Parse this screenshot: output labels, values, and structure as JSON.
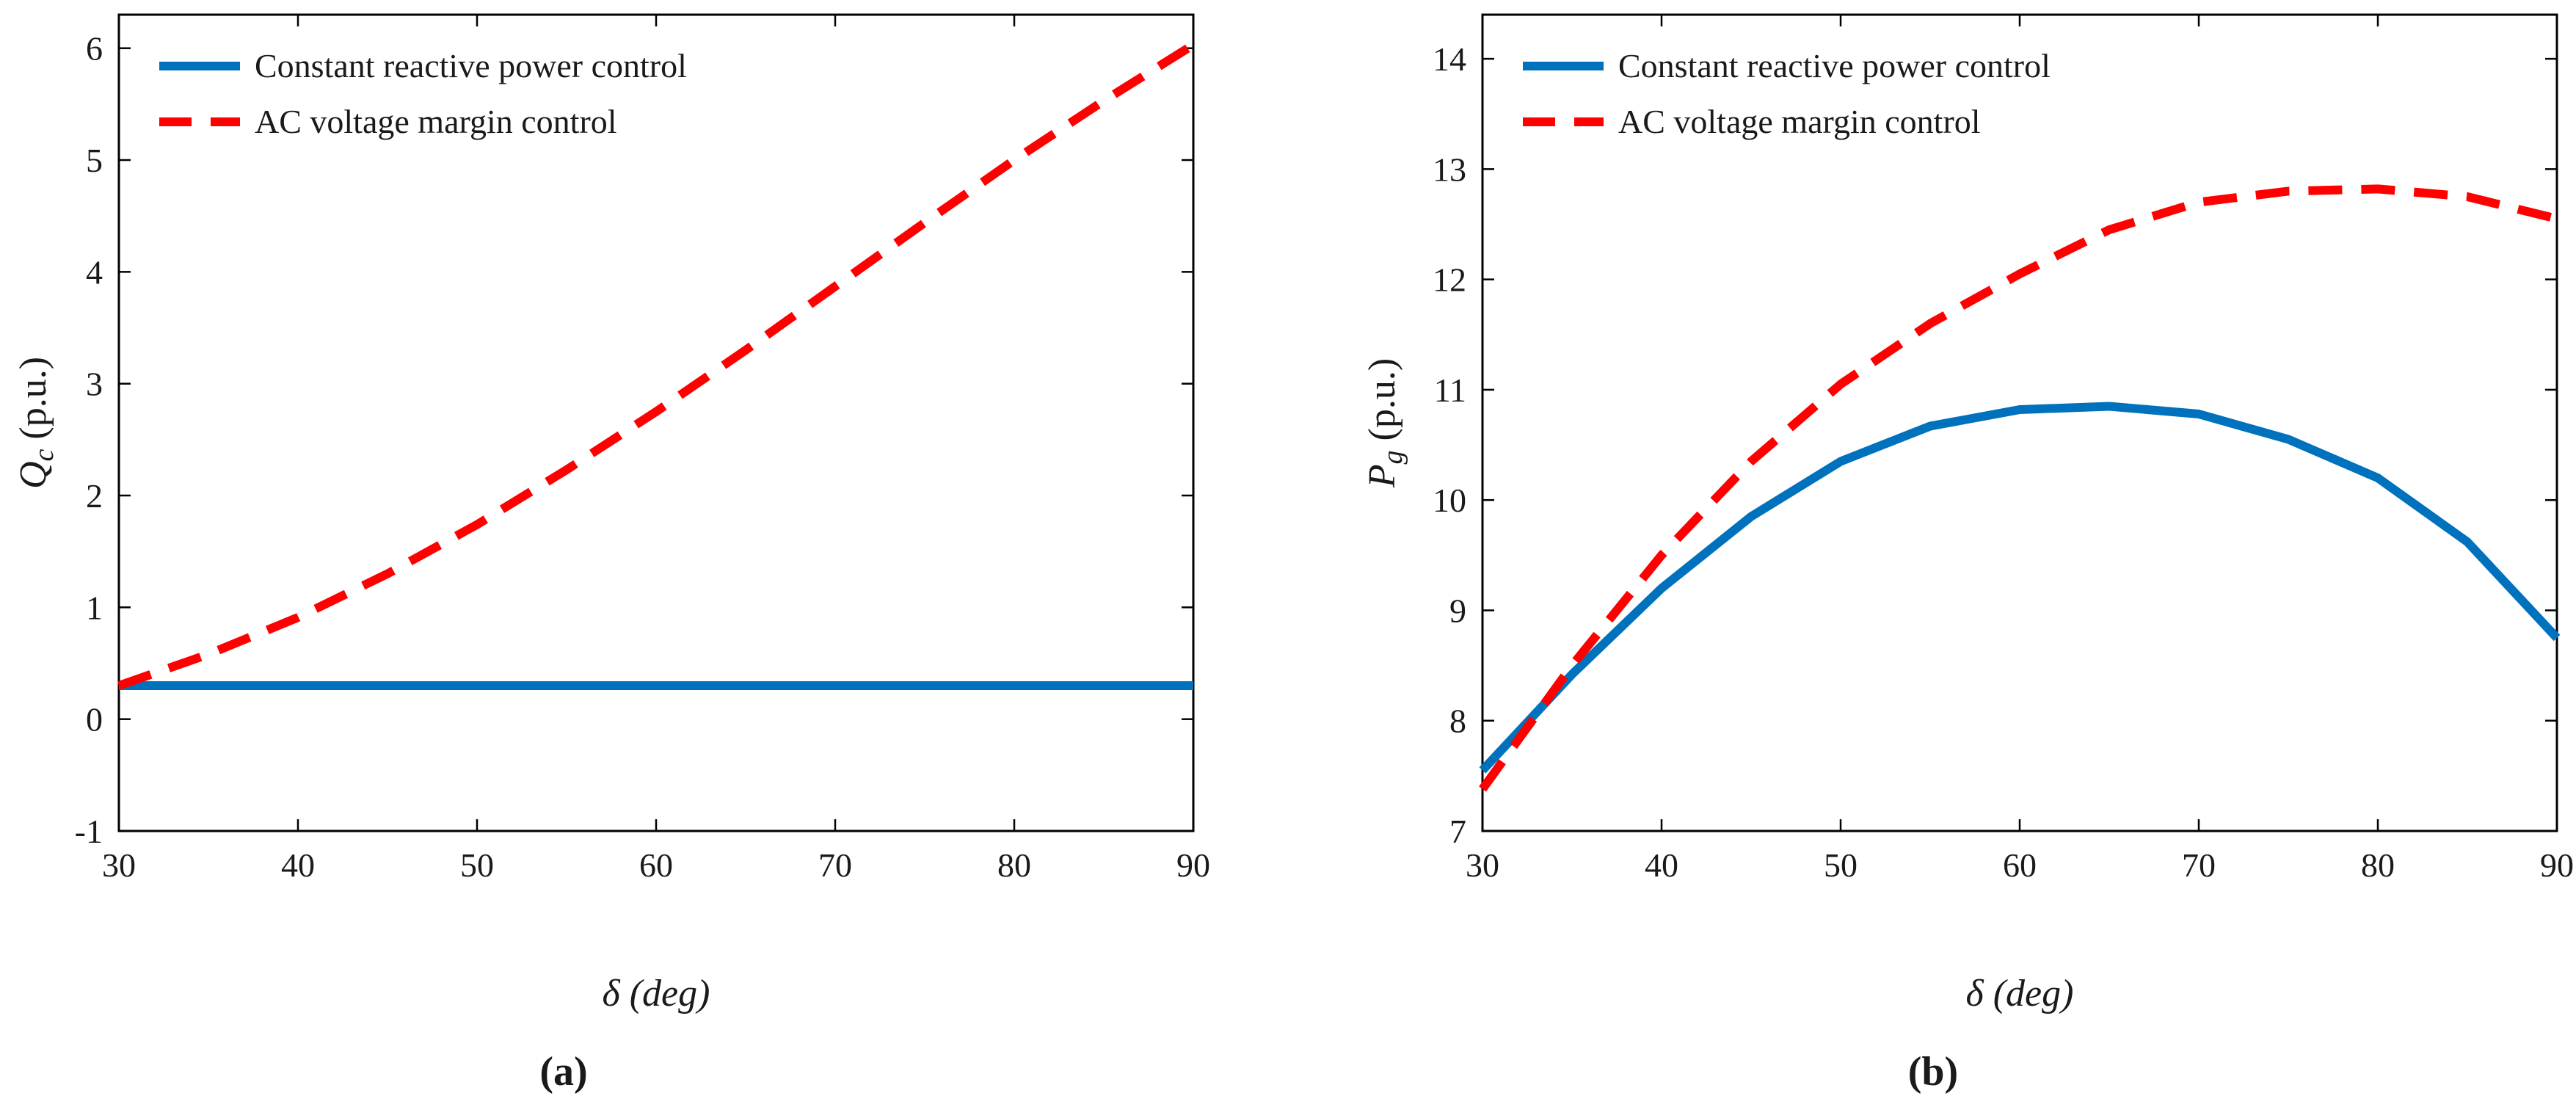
{
  "figure": {
    "panels": [
      "(a)",
      "(b)"
    ]
  },
  "chart_data": [
    {
      "type": "line",
      "panel": "(a)",
      "title": "",
      "xlabel": "δ (deg)",
      "ylabel_main": "Q",
      "ylabel_sub": "c",
      "ylabel_unit": " (p.u.)",
      "xlim": [
        30,
        90
      ],
      "ylim": [
        -1,
        6.3
      ],
      "xticks": [
        30,
        40,
        50,
        60,
        70,
        80,
        90
      ],
      "yticks": [
        -1,
        0,
        1,
        2,
        3,
        4,
        5,
        6
      ],
      "grid": false,
      "legend_position": "top-left",
      "series": [
        {
          "name": "Constant reactive power control",
          "color": "#0072BD",
          "style": "solid",
          "x": [
            30,
            35,
            40,
            45,
            50,
            55,
            60,
            65,
            70,
            75,
            80,
            85,
            90
          ],
          "y": [
            0.3,
            0.3,
            0.3,
            0.3,
            0.3,
            0.3,
            0.3,
            0.3,
            0.3,
            0.3,
            0.3,
            0.3,
            0.3
          ]
        },
        {
          "name": "AC voltage margin control",
          "color": "#FF0000",
          "style": "dashed",
          "x": [
            30,
            35,
            40,
            45,
            50,
            55,
            60,
            65,
            70,
            75,
            80,
            85,
            90
          ],
          "y": [
            0.3,
            0.58,
            0.91,
            1.3,
            1.74,
            2.23,
            2.75,
            3.3,
            3.87,
            4.44,
            5.0,
            5.53,
            6.03
          ]
        }
      ]
    },
    {
      "type": "line",
      "panel": "(b)",
      "title": "",
      "xlabel": "δ (deg)",
      "ylabel_main": "P",
      "ylabel_sub": "g",
      "ylabel_unit": " (p.u.)",
      "xlim": [
        30,
        90
      ],
      "ylim": [
        7,
        14.4
      ],
      "xticks": [
        30,
        40,
        50,
        60,
        70,
        80,
        90
      ],
      "yticks": [
        7,
        8,
        9,
        10,
        11,
        12,
        13,
        14
      ],
      "grid": false,
      "legend_position": "top-left",
      "series": [
        {
          "name": "Constant reactive power control",
          "color": "#0072BD",
          "style": "solid",
          "x": [
            30,
            35,
            40,
            45,
            50,
            55,
            60,
            65,
            70,
            75,
            80,
            85,
            90
          ],
          "y": [
            7.55,
            8.42,
            9.2,
            9.85,
            10.35,
            10.67,
            10.82,
            10.85,
            10.78,
            10.55,
            10.2,
            9.62,
            8.75
          ]
        },
        {
          "name": "AC voltage margin control",
          "color": "#FF0000",
          "style": "dashed",
          "x": [
            30,
            35,
            40,
            45,
            50,
            55,
            60,
            65,
            70,
            75,
            80,
            85,
            90
          ],
          "y": [
            7.38,
            8.5,
            9.5,
            10.35,
            11.05,
            11.6,
            12.05,
            12.45,
            12.7,
            12.8,
            12.82,
            12.75,
            12.55
          ]
        }
      ]
    }
  ]
}
